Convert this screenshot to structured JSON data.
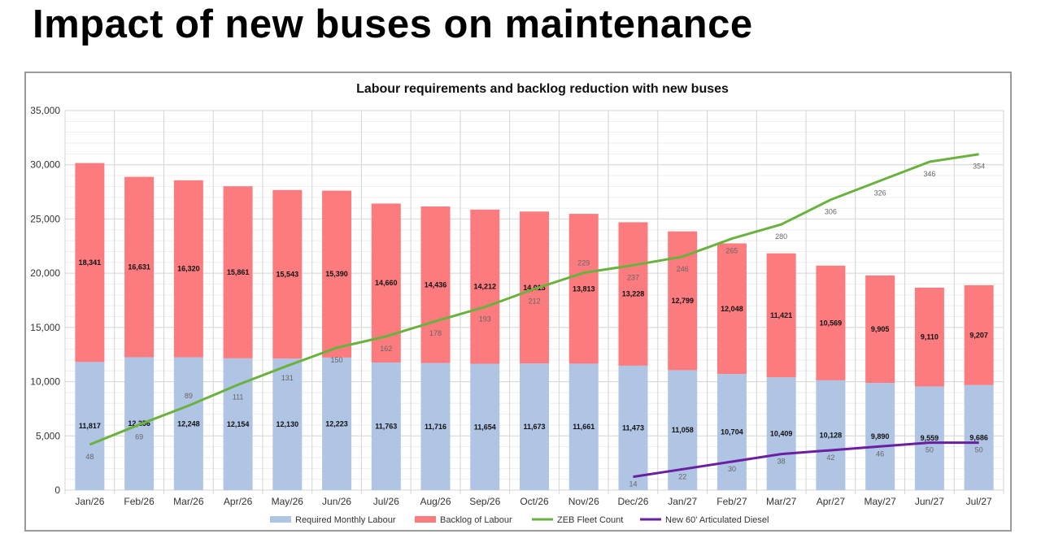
{
  "slide": {
    "title": "Impact of new buses on maintenance"
  },
  "chart_data": {
    "type": "bar",
    "stacked": true,
    "title": "Labour requirements and backlog reduction with new buses",
    "xlabel": "",
    "ylabel": "",
    "ylim": [
      0,
      35000
    ],
    "yticks": [
      "0",
      "5,000",
      "10,000",
      "15,000",
      "20,000",
      "25,000",
      "30,000",
      "35,000"
    ],
    "grid": true,
    "legend_position": "bottom",
    "categories": [
      "Jan/26",
      "Feb/26",
      "Mar/26",
      "Apr/26",
      "May/26",
      "Jun/26",
      "Jul/26",
      "Aug/26",
      "Sep/26",
      "Oct/26",
      "Nov/26",
      "Dec/26",
      "Jan/27",
      "Feb/27",
      "Mar/27",
      "Apr/27",
      "May/27",
      "Jun/27",
      "Jul/27"
    ],
    "series": [
      {
        "name": "Required Monthly Labour",
        "type": "bar",
        "color": "#b0c4e4",
        "values": [
          11817,
          12256,
          12248,
          12154,
          12130,
          12223,
          11763,
          11716,
          11654,
          11673,
          11661,
          11473,
          11058,
          10704,
          10409,
          10128,
          9890,
          9559,
          9686
        ]
      },
      {
        "name": "Backlog of Labour",
        "type": "bar",
        "color": "#fc7b7e",
        "values": [
          18341,
          16631,
          16320,
          15861,
          15543,
          15390,
          14660,
          14436,
          14212,
          14013,
          13813,
          13228,
          12799,
          12048,
          11421,
          10569,
          9905,
          9110,
          9207
        ]
      },
      {
        "name": "ZEB Fleet Count",
        "type": "line",
        "axis": "secondary",
        "color": "#6ab23e",
        "values": [
          48,
          69,
          89,
          111,
          131,
          150,
          162,
          178,
          193,
          212,
          229,
          237,
          246,
          265,
          280,
          306,
          326,
          346,
          354
        ]
      },
      {
        "name": "New 60' Articulated Diesel",
        "type": "line",
        "axis": "secondary",
        "color": "#6a1fa0",
        "values": [
          null,
          null,
          null,
          null,
          null,
          null,
          null,
          null,
          null,
          null,
          null,
          14,
          22,
          30,
          38,
          42,
          46,
          50,
          50
        ]
      }
    ],
    "secondary_ylim": [
      0,
      400
    ]
  }
}
